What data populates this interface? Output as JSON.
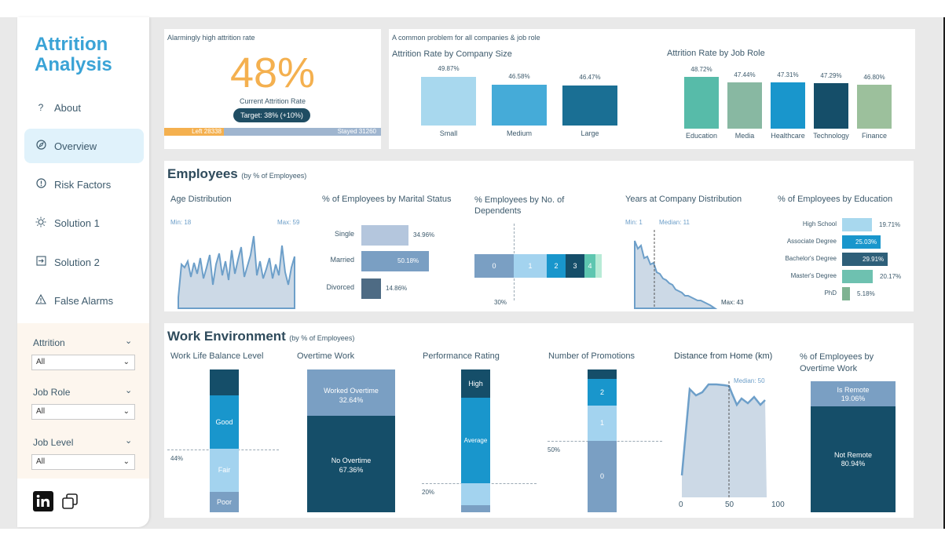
{
  "app": {
    "title_line1": "Attrition",
    "title_line2": "Analysis"
  },
  "nav": [
    {
      "label": "About",
      "icon": "question-icon"
    },
    {
      "label": "Overview",
      "icon": "compass-icon",
      "active": true
    },
    {
      "label": "Risk Factors",
      "icon": "alert-circle-icon"
    },
    {
      "label": "Solution 1",
      "icon": "bulb-icon"
    },
    {
      "label": "Solution 2",
      "icon": "export-icon"
    },
    {
      "label": "False Alarms",
      "icon": "warning-icon"
    }
  ],
  "filters": [
    {
      "label": "Attrition",
      "value": "All"
    },
    {
      "label": "Job Role",
      "value": "All"
    },
    {
      "label": "Job Level",
      "value": "All"
    }
  ],
  "kpi": {
    "caption": "Alarmingly high attrition rate",
    "value": "48%",
    "subtitle": "Current Attrition Rate",
    "target_label": "Target:",
    "target_value": "38%",
    "target_delta": "(+10%)",
    "left_label": "Left",
    "left_count": "28338",
    "stayed_label": "Stayed",
    "stayed_count": "31260",
    "left_fraction": 0.4755
  },
  "colors": {
    "accent": "#3aa3d6",
    "kpi_orange": "#f4b04f",
    "stayed_bar": "#9fb5cf",
    "light_blue": "#a8d8ee",
    "mid_blue": "#45abd8",
    "dark_teal": "#1a6f94",
    "navy": "#154e69",
    "teal_green": "#57bba9",
    "sage": "#88b8a2",
    "finance_green": "#9cc09c"
  },
  "company": {
    "caption": "A common problem for all companies & job role",
    "size_title": "Attrition Rate by Company Size",
    "size_bars": [
      {
        "label": "Small",
        "value": "49.87%"
      },
      {
        "label": "Medium",
        "value": "46.58%"
      },
      {
        "label": "Large",
        "value": "46.47%"
      }
    ],
    "role_title": "Attrition Rate by Job Role",
    "role_bars": [
      {
        "label": "Education",
        "value": "48.72%"
      },
      {
        "label": "Media",
        "value": "47.44%"
      },
      {
        "label": "Healthcare",
        "value": "47.31%"
      },
      {
        "label": "Technology",
        "value": "47.29%"
      },
      {
        "label": "Finance",
        "value": "46.80%"
      }
    ]
  },
  "employees": {
    "title": "Employees",
    "subtitle": "(by % of Employees)",
    "age": {
      "title": "Age Distribution",
      "min": "Min: 18",
      "max": "Max: 59"
    },
    "marital": {
      "title": "% of Employees by Marital Status",
      "rows": [
        {
          "label": "Single",
          "value": "34.96%",
          "pct": 34.96
        },
        {
          "label": "Married",
          "value": "50.18%",
          "pct": 50.18
        },
        {
          "label": "Divorced",
          "value": "14.86%",
          "pct": 14.86
        }
      ]
    },
    "dependents": {
      "title_line1": "% Employees by No. of",
      "title_line2": "Dependents",
      "segments": [
        "0",
        "1",
        "2",
        "3",
        "4"
      ],
      "ref_label": "30%"
    },
    "years": {
      "title": "Years at Company Distribution",
      "min": "Min: 1",
      "median": "Median: 11",
      "max": "Max: 43"
    },
    "education": {
      "title": "% of Employees by Education",
      "rows": [
        {
          "label": "High School",
          "value": "19.71%",
          "pct": 19.71
        },
        {
          "label": "Associate Degree",
          "value": "25.03%",
          "pct": 25.03
        },
        {
          "label": "Bachelor's Degree",
          "value": "29.91%",
          "pct": 29.91
        },
        {
          "label": "Master's Degree",
          "value": "20.17%",
          "pct": 20.17
        },
        {
          "label": "PhD",
          "value": "5.18%",
          "pct": 5.18
        }
      ]
    }
  },
  "work": {
    "title": "Work Environment",
    "subtitle": "(by % of Employees)",
    "wlb": {
      "title": "Work Life Balance Level",
      "good": "Good",
      "fair": "Fair",
      "poor": "Poor",
      "ref": "44%"
    },
    "overtime": {
      "title": "Overtime Work",
      "worked": "Worked Overtime",
      "worked_pct": "32.64%",
      "none": "No Overtime",
      "none_pct": "67.36%"
    },
    "performance": {
      "title": "Performance Rating",
      "high": "High",
      "average": "Average",
      "ref": "20%"
    },
    "promotions": {
      "title": "Number of Promotions",
      "seg2": "2",
      "seg1": "1",
      "seg0": "0",
      "ref": "50%"
    },
    "distance": {
      "title": "Distance from Home (km)",
      "median": "Median: 50",
      "ticks": [
        "0",
        "50",
        "100"
      ]
    },
    "remote": {
      "title_line1": "% of Employees by",
      "title_line2": "Overtime Work",
      "is_remote": "Is Remote",
      "is_remote_pct": "19.06%",
      "not_remote": "Not Remote",
      "not_remote_pct": "80.94%"
    }
  },
  "footer_icons": [
    "linkedin-icon",
    "copy-icon"
  ]
}
